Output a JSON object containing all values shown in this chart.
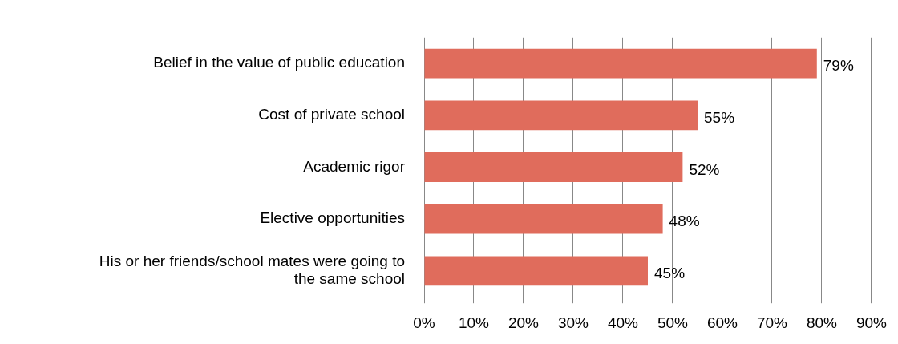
{
  "chart_data": {
    "type": "bar",
    "orientation": "horizontal",
    "categories": [
      "Belief in the value of public education",
      "Cost of private school",
      "Academic rigor",
      "Elective opportunities",
      "His or her friends/school mates were going to the same school"
    ],
    "values": [
      79,
      55,
      52,
      48,
      45
    ],
    "value_labels": [
      "79%",
      "55%",
      "52%",
      "48%",
      "45%"
    ],
    "color": "#e06c5c",
    "xlim": [
      0,
      90
    ],
    "xticks": [
      {
        "value": 0,
        "label": "0%"
      },
      {
        "value": 10,
        "label": "10%"
      },
      {
        "value": 20,
        "label": "20%"
      },
      {
        "value": 30,
        "label": "30%"
      },
      {
        "value": 40,
        "label": "40%"
      },
      {
        "value": 50,
        "label": "50%"
      },
      {
        "value": 60,
        "label": "60%"
      },
      {
        "value": 70,
        "label": "70%"
      },
      {
        "value": 80,
        "label": "80%"
      },
      {
        "value": 90,
        "label": "90%"
      }
    ],
    "grid": "x",
    "legend": false
  }
}
